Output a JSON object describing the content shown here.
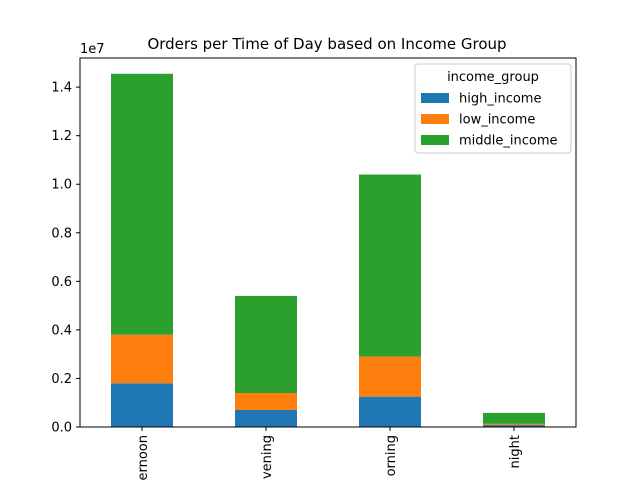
{
  "chart_data": {
    "type": "bar",
    "stacked": true,
    "title": "Orders per Time of Day based on Income Group",
    "xlabel": "",
    "ylabel": "",
    "y_offset_label": "1e7",
    "ylim": [
      0,
      1.52
    ],
    "y_ticks": [
      0.0,
      0.2,
      0.4,
      0.6,
      0.8,
      1.0,
      1.2,
      1.4
    ],
    "y_tick_labels": [
      "0.0",
      "0.2",
      "0.4",
      "0.6",
      "0.8",
      "1.0",
      "1.2",
      "1.4"
    ],
    "grid": false,
    "categories": [
      "afternoon",
      "evening",
      "morning",
      "night"
    ],
    "category_labels_visible": [
      "ernoon",
      "vening",
      "orning",
      "night"
    ],
    "legend": {
      "title": "income_group",
      "placement": "top-right"
    },
    "series": [
      {
        "name": "high_income",
        "color": "#1f77b4",
        "values": [
          0.18,
          0.07,
          0.125,
          0.008
        ]
      },
      {
        "name": "low_income",
        "color": "#ff7f0e",
        "values": [
          0.2,
          0.07,
          0.165,
          0.005
        ]
      },
      {
        "name": "middle_income",
        "color": "#2ca02c",
        "values": [
          1.075,
          0.4,
          0.75,
          0.045
        ]
      }
    ]
  }
}
